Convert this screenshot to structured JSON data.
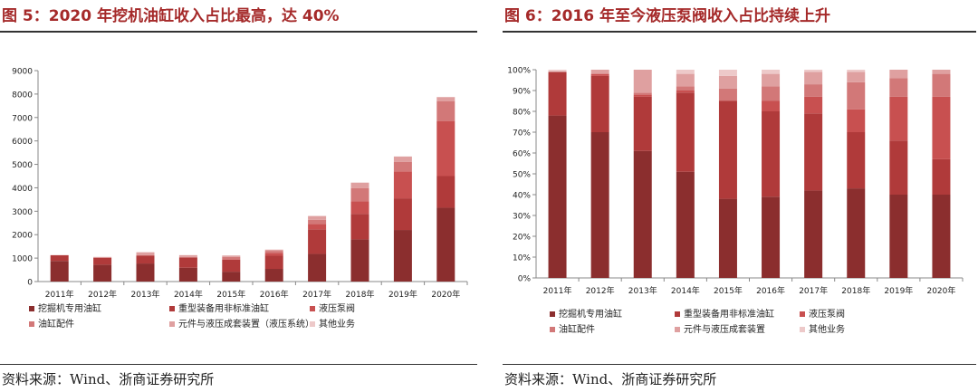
{
  "left": {
    "title": "图 5：2020 年挖机油缸收入占比最高，达 40%",
    "source": "资料来源：Wind、浙商证券研究所",
    "chart_data": {
      "type": "bar",
      "stacked": true,
      "categories": [
        "2011年",
        "2012年",
        "2013年",
        "2014年",
        "2015年",
        "2016年",
        "2017年",
        "2018年",
        "2019年",
        "2020年"
      ],
      "ylim": [
        0,
        9000
      ],
      "yticks": [
        "0",
        "1000",
        "2000",
        "3000",
        "4000",
        "5000",
        "6000",
        "7000",
        "8000",
        "9000"
      ],
      "series": [
        {
          "name": "挖掘机专用油缸",
          "color": "#8b2e2e",
          "values": [
            880,
            720,
            770,
            590,
            420,
            540,
            1180,
            1800,
            2200,
            3150
          ]
        },
        {
          "name": "重型装备用非标准油缸",
          "color": "#b03a3a",
          "values": [
            240,
            290,
            330,
            430,
            510,
            560,
            1050,
            1090,
            1350,
            1350
          ]
        },
        {
          "name": "液压泵阀",
          "color": "#c85050",
          "values": [
            0,
            10,
            0,
            0,
            20,
            120,
            220,
            540,
            1150,
            2350
          ]
        },
        {
          "name": "油缸配件",
          "color": "#d27878",
          "values": [
            0,
            10,
            20,
            30,
            100,
            90,
            180,
            550,
            400,
            850
          ]
        },
        {
          "name": "元件与液压成套装置（液压系统）",
          "color": "#dfa0a0",
          "values": [
            10,
            20,
            130,
            70,
            60,
            50,
            160,
            240,
            230,
            170
          ]
        },
        {
          "name": "其他业务",
          "color": "#edc9c9",
          "values": [
            0,
            0,
            0,
            10,
            0,
            10,
            20,
            10,
            10,
            10
          ]
        }
      ],
      "legend_position": "bottom"
    }
  },
  "right": {
    "title": "图 6：2016 年至今液压泵阀收入占比持续上升",
    "source": "资料来源：Wind、浙商证券研究所",
    "chart_data": {
      "type": "bar",
      "stacked": true,
      "percent": true,
      "categories": [
        "2011年",
        "2012年",
        "2013年",
        "2014年",
        "2015年",
        "2016年",
        "2017年",
        "2018年",
        "2019年",
        "2020年"
      ],
      "ylim": [
        0,
        100
      ],
      "yticks": [
        "0%",
        "10%",
        "20%",
        "30%",
        "40%",
        "50%",
        "60%",
        "70%",
        "80%",
        "90%",
        "100%"
      ],
      "series": [
        {
          "name": "挖掘机专用油缸",
          "color": "#8b2e2e",
          "values": [
            78,
            70,
            61,
            51,
            38,
            39,
            42,
            43,
            40,
            40
          ]
        },
        {
          "name": "重型装备用非标准油缸",
          "color": "#b03a3a",
          "values": [
            21,
            27,
            26,
            38,
            47,
            41,
            37,
            27,
            26,
            17
          ]
        },
        {
          "name": "液压泵阀",
          "color": "#c85050",
          "values": [
            0,
            1,
            1,
            1,
            0,
            5,
            8,
            11,
            21,
            30
          ]
        },
        {
          "name": "油缸配件",
          "color": "#d27878",
          "values": [
            0,
            0,
            1,
            2,
            6,
            7,
            6,
            13,
            9,
            11
          ]
        },
        {
          "name": "元件与液压成套装置",
          "color": "#dfa0a0",
          "values": [
            0,
            2,
            11,
            6,
            6,
            6,
            6,
            5,
            4,
            2
          ]
        },
        {
          "name": "其他业务",
          "color": "#edc9c9",
          "values": [
            1,
            0,
            0,
            2,
            3,
            2,
            1,
            1,
            0,
            0
          ]
        }
      ],
      "legend_position": "bottom"
    }
  }
}
